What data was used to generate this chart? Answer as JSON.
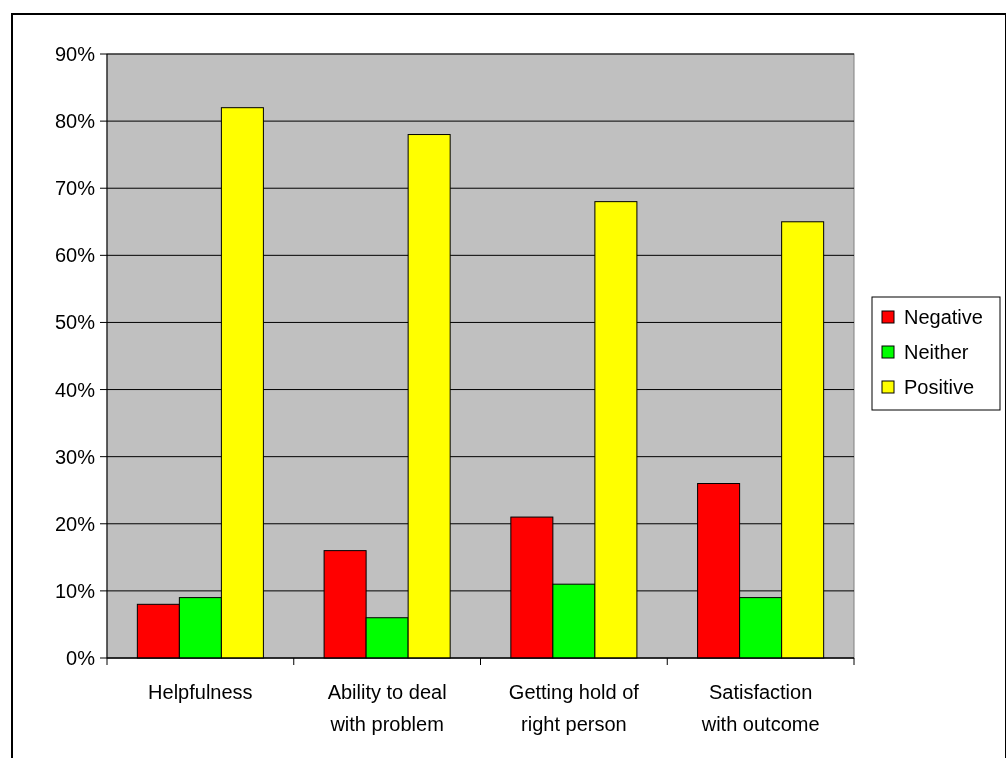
{
  "chart_data": {
    "type": "bar",
    "categories": [
      "Helpfulness",
      "Ability to deal with problem",
      "Getting hold of right person",
      "Satisfaction with outcome"
    ],
    "series": [
      {
        "name": "Negative",
        "color": "#ff0000",
        "values": [
          8,
          16,
          21,
          26
        ]
      },
      {
        "name": "Neither",
        "color": "#00ff00",
        "values": [
          9,
          6,
          11,
          9
        ]
      },
      {
        "name": "Positive",
        "color": "#ffff00",
        "values": [
          82,
          78,
          68,
          65
        ]
      }
    ],
    "ylim": [
      0,
      90
    ],
    "yticks": [
      {
        "value": 0,
        "label": "0%"
      },
      {
        "value": 10,
        "label": "10%"
      },
      {
        "value": 20,
        "label": "20%"
      },
      {
        "value": 30,
        "label": "30%"
      },
      {
        "value": 40,
        "label": "40%"
      },
      {
        "value": 50,
        "label": "50%"
      },
      {
        "value": 60,
        "label": "60%"
      },
      {
        "value": 70,
        "label": "70%"
      },
      {
        "value": 80,
        "label": "80%"
      },
      {
        "value": 90,
        "label": "90%"
      }
    ],
    "grid": "y",
    "legend": "right"
  }
}
